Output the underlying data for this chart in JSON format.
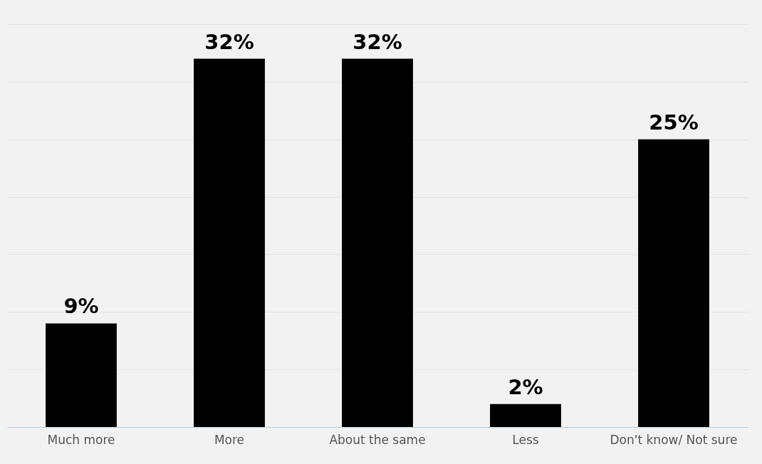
{
  "chart_data": {
    "type": "bar",
    "categories": [
      "Much more",
      "More",
      "About the same",
      "Less",
      "Don't know/ Not sure"
    ],
    "values": [
      9,
      32,
      32,
      2,
      25
    ],
    "value_labels": [
      "9%",
      "32%",
      "32%",
      "2%",
      "25%"
    ],
    "color": "#000000",
    "ylim": [
      0,
      35
    ],
    "yticks": [
      {
        "value": 0,
        "label": null
      },
      {
        "value": 5,
        "label": null
      },
      {
        "value": 10,
        "label": null
      },
      {
        "value": 15,
        "label": null
      },
      {
        "value": 20,
        "label": null
      },
      {
        "value": 25,
        "label": null
      },
      {
        "value": 30,
        "label": null
      },
      {
        "value": 35,
        "label": null
      }
    ],
    "grid": "y",
    "tick_labels": "x"
  }
}
